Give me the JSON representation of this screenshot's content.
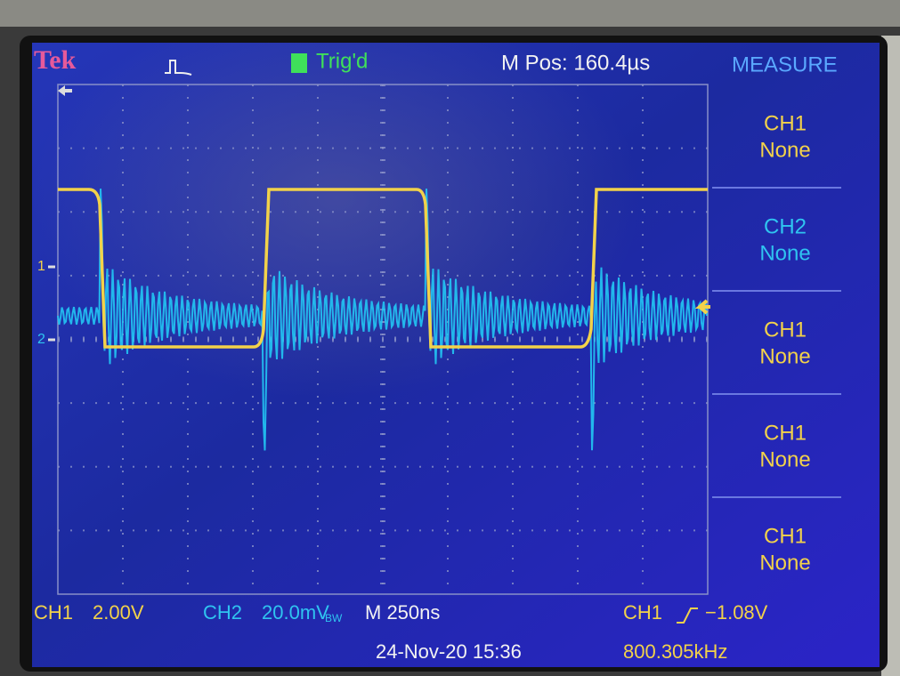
{
  "header": {
    "brand": "Tek",
    "trigger_status": "Trig'd",
    "position": "M Pos: 160.4µs",
    "menu_title": "MEASURE"
  },
  "measure_menu": [
    {
      "source": "CH1",
      "value": "None"
    },
    {
      "source": "CH2",
      "value": "None"
    },
    {
      "source": "CH1",
      "value": "None"
    },
    {
      "source": "CH1",
      "value": "None"
    },
    {
      "source": "CH1",
      "value": "None"
    }
  ],
  "markers": {
    "ch1": "1",
    "ch2": "2"
  },
  "footer": {
    "ch1_label": "CH1",
    "ch1_scale": "2.00V",
    "ch2_label": "CH2",
    "ch2_scale": "20.0mV",
    "ch2_bw": "BW",
    "timebase": "M 250ns",
    "trigger_source": "CH1",
    "trigger_level": "−1.08V",
    "datetime": "24-Nov-20 15:36",
    "frequency": "800.305kHz"
  }
}
